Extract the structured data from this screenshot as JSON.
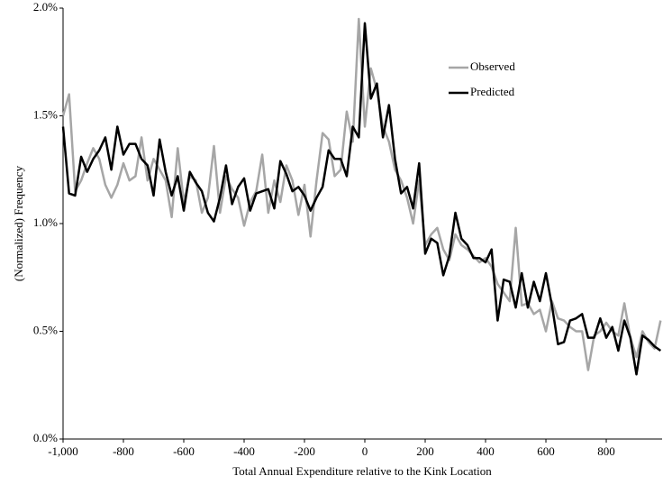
{
  "chart_data": {
    "type": "line",
    "x_label": "Total Annual Expenditure relative to the Kink Location",
    "y_label": "(Normalized) Frequency",
    "x": [
      -1000,
      -980,
      -960,
      -940,
      -920,
      -900,
      -880,
      -860,
      -840,
      -820,
      -800,
      -780,
      -760,
      -740,
      -720,
      -700,
      -680,
      -660,
      -640,
      -620,
      -600,
      -580,
      -560,
      -540,
      -520,
      -500,
      -480,
      -460,
      -440,
      -420,
      -400,
      -380,
      -360,
      -340,
      -320,
      -300,
      -280,
      -260,
      -240,
      -220,
      -200,
      -180,
      -160,
      -140,
      -120,
      -100,
      -80,
      -60,
      -40,
      -20,
      0,
      20,
      40,
      60,
      80,
      100,
      120,
      140,
      160,
      180,
      200,
      220,
      240,
      260,
      280,
      300,
      320,
      340,
      360,
      380,
      400,
      420,
      440,
      460,
      480,
      500,
      520,
      540,
      560,
      580,
      600,
      620,
      640,
      660,
      680,
      700,
      720,
      740,
      760,
      780,
      800,
      820,
      840,
      860,
      880,
      900,
      920,
      940,
      960,
      980
    ],
    "series": [
      {
        "name": "Observed",
        "color": "#a6a6a6",
        "width": 2.5,
        "values": [
          1.5,
          1.6,
          1.15,
          1.2,
          1.28,
          1.35,
          1.3,
          1.18,
          1.12,
          1.18,
          1.28,
          1.2,
          1.22,
          1.4,
          1.2,
          1.3,
          1.25,
          1.2,
          1.03,
          1.35,
          1.1,
          1.22,
          1.2,
          1.05,
          1.12,
          1.36,
          1.05,
          1.22,
          1.16,
          1.12,
          0.99,
          1.1,
          1.15,
          1.32,
          1.05,
          1.2,
          1.1,
          1.27,
          1.2,
          1.04,
          1.18,
          0.94,
          1.2,
          1.42,
          1.39,
          1.22,
          1.25,
          1.52,
          1.38,
          1.95,
          1.45,
          1.72,
          1.62,
          1.45,
          1.38,
          1.25,
          1.2,
          1.12,
          1.0,
          1.2,
          0.9,
          0.95,
          0.98,
          0.88,
          0.83,
          0.95,
          0.9,
          0.88,
          0.85,
          0.82,
          0.84,
          0.8,
          0.72,
          0.68,
          0.64,
          0.98,
          0.62,
          0.63,
          0.58,
          0.6,
          0.5,
          0.64,
          0.56,
          0.55,
          0.52,
          0.5,
          0.5,
          0.32,
          0.48,
          0.5,
          0.54,
          0.5,
          0.48,
          0.63,
          0.47,
          0.38,
          0.5,
          0.45,
          0.42,
          0.55
        ]
      },
      {
        "name": "Predicted",
        "color": "#000000",
        "width": 2.5,
        "values": [
          1.45,
          1.14,
          1.13,
          1.31,
          1.24,
          1.3,
          1.34,
          1.4,
          1.25,
          1.45,
          1.32,
          1.37,
          1.37,
          1.3,
          1.27,
          1.13,
          1.39,
          1.24,
          1.13,
          1.22,
          1.06,
          1.24,
          1.19,
          1.15,
          1.05,
          1.01,
          1.12,
          1.27,
          1.09,
          1.17,
          1.21,
          1.06,
          1.14,
          1.15,
          1.16,
          1.07,
          1.29,
          1.23,
          1.15,
          1.17,
          1.13,
          1.06,
          1.12,
          1.17,
          1.34,
          1.3,
          1.3,
          1.22,
          1.45,
          1.4,
          1.93,
          1.58,
          1.65,
          1.4,
          1.55,
          1.3,
          1.14,
          1.17,
          1.07,
          1.28,
          0.86,
          0.93,
          0.91,
          0.76,
          0.85,
          1.05,
          0.93,
          0.9,
          0.84,
          0.84,
          0.82,
          0.88,
          0.55,
          0.74,
          0.73,
          0.61,
          0.77,
          0.61,
          0.73,
          0.64,
          0.77,
          0.62,
          0.44,
          0.45,
          0.55,
          0.56,
          0.58,
          0.47,
          0.47,
          0.56,
          0.47,
          0.52,
          0.41,
          0.55,
          0.47,
          0.3,
          0.48,
          0.46,
          0.43,
          0.41
        ]
      }
    ],
    "xlim": [
      -1000,
      985
    ],
    "ylim": [
      0,
      2
    ],
    "xticks": [
      {
        "value": -1000,
        "label": "-1,000"
      },
      -800,
      -600,
      -400,
      -200,
      0,
      200,
      400,
      600,
      800
    ],
    "yticks": [
      {
        "value": 0,
        "label": "0.0%"
      },
      {
        "value": 0.5,
        "label": "0.5%"
      },
      {
        "value": 1,
        "label": "1.0%"
      },
      {
        "value": 1.5,
        "label": "1.5%"
      },
      {
        "value": 2,
        "label": "2.0%"
      }
    ],
    "grid": false,
    "legend": "upper-right"
  }
}
